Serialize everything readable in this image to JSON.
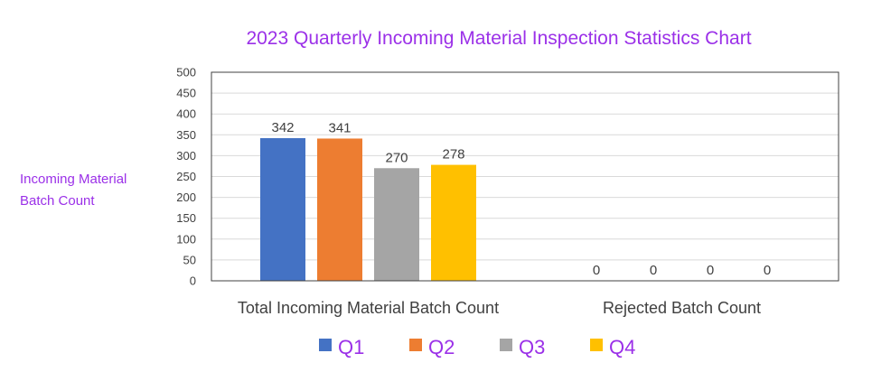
{
  "chart_data": {
    "type": "bar",
    "title": "2023 Quarterly Incoming Material Inspection Statistics Chart",
    "ylabel_lines": [
      "Incoming Material",
      "Batch Count"
    ],
    "categories": [
      "Total Incoming Material Batch Count",
      "Rejected Batch Count"
    ],
    "series": [
      {
        "name": "Q1",
        "color": "#4472c4",
        "values": [
          342,
          0
        ]
      },
      {
        "name": "Q2",
        "color": "#ed7d31",
        "values": [
          341,
          0
        ]
      },
      {
        "name": "Q3",
        "color": "#a5a5a5",
        "values": [
          270,
          0
        ]
      },
      {
        "name": "Q4",
        "color": "#ffc000",
        "values": [
          278,
          0
        ]
      }
    ],
    "ylim": [
      0,
      500
    ],
    "ytick_step": 50,
    "grid": true,
    "legend_position": "bottom",
    "title_color": "#9b30e8"
  }
}
